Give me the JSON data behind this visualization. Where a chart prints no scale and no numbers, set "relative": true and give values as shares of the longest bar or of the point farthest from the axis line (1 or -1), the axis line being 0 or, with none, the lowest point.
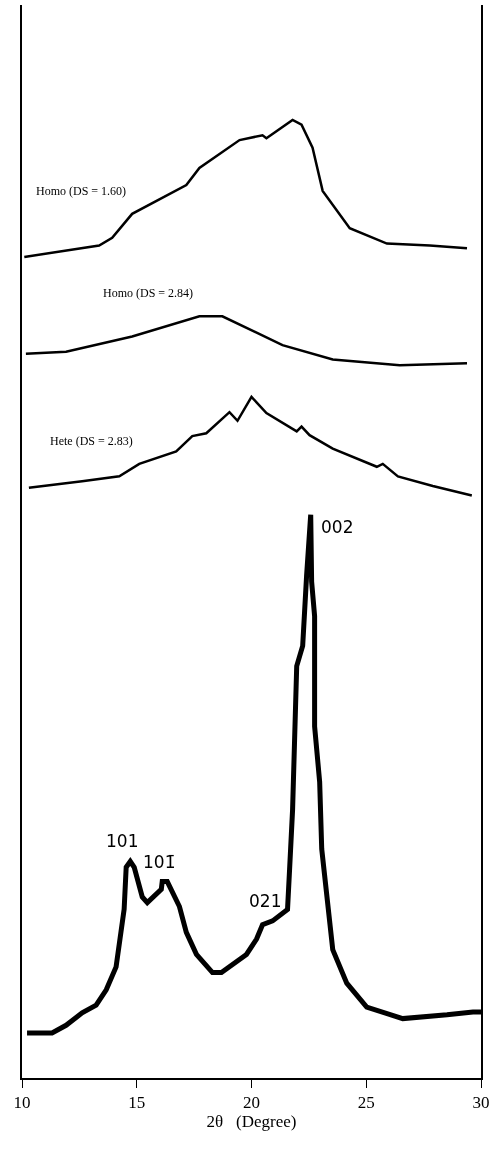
{
  "chart_data": {
    "type": "line",
    "relative": true,
    "xlabel": "2θ   (Degree)",
    "xlim": [
      10,
      30
    ],
    "xticks": [
      10,
      15,
      20,
      25,
      30
    ],
    "legend": false,
    "marker": "none",
    "line_style": "solid",
    "series": [
      {
        "name": "Homo (DS = 1.60)",
        "color": "#000000",
        "x": [
          10.1,
          13.36,
          13.93,
          14.8,
          17.16,
          17.73,
          19.48,
          20.48,
          20.65,
          21.79,
          22.18,
          22.66,
          23.1,
          24.28,
          25.9,
          27.77,
          29.39
        ],
        "values": [
          0.857,
          0.869,
          0.877,
          0.902,
          0.932,
          0.95,
          0.979,
          0.984,
          0.981,
          1.0,
          0.995,
          0.971,
          0.926,
          0.887,
          0.871,
          0.869,
          0.866
        ]
      },
      {
        "name": "Homo (DS = 2.84)",
        "color": "#000000",
        "x": [
          10.17,
          11.92,
          14.8,
          17.73,
          18.73,
          21.35,
          23.54,
          26.46,
          29.39
        ],
        "values": [
          0.756,
          0.758,
          0.774,
          0.795,
          0.795,
          0.765,
          0.75,
          0.744,
          0.746
        ]
      },
      {
        "name": "Hete (DS = 2.83)",
        "color": "#000000",
        "x": [
          10.3,
          12.62,
          14.24,
          15.11,
          16.72,
          17.42,
          18.03,
          19.04,
          19.39,
          20.0,
          20.65,
          21.97,
          22.18,
          22.53,
          23.54,
          25.46,
          25.72,
          26.38,
          27.9,
          29.6
        ],
        "values": [
          0.616,
          0.623,
          0.628,
          0.641,
          0.654,
          0.67,
          0.673,
          0.695,
          0.686,
          0.711,
          0.694,
          0.675,
          0.68,
          0.671,
          0.657,
          0.638,
          0.641,
          0.628,
          0.618,
          0.608
        ]
      },
      {
        "color": "#000000",
        "x": [
          10.22,
          11.31,
          11.92,
          12.62,
          13.23,
          13.67,
          14.1,
          14.45,
          14.54,
          14.72,
          14.89,
          15.24,
          15.46,
          16.07,
          16.11,
          16.33,
          16.86,
          17.16,
          17.6,
          18.3,
          18.69,
          19.78,
          20.22,
          20.48,
          20.92,
          21.57,
          21.66,
          21.79,
          21.97,
          22.23,
          22.4,
          22.58,
          22.62,
          22.75,
          22.75,
          22.97,
          23.06,
          23.54,
          24.15,
          25.02,
          26.59,
          28.52,
          29.65,
          30.0
        ],
        "values": [
          0.047,
          0.047,
          0.055,
          0.068,
          0.076,
          0.092,
          0.116,
          0.176,
          0.22,
          0.226,
          0.22,
          0.189,
          0.183,
          0.197,
          0.205,
          0.205,
          0.179,
          0.152,
          0.129,
          0.11,
          0.11,
          0.129,
          0.145,
          0.16,
          0.164,
          0.176,
          0.218,
          0.28,
          0.43,
          0.451,
          0.524,
          0.588,
          0.518,
          0.482,
          0.367,
          0.309,
          0.239,
          0.134,
          0.099,
          0.074,
          0.062,
          0.066,
          0.069,
          0.069
        ]
      }
    ],
    "annotations": [
      {
        "text": "101",
        "x": 14.72,
        "y": 0.226
      },
      {
        "text": "101̄",
        "x": 16.33,
        "y": 0.205
      },
      {
        "text": "021",
        "x": 20.92,
        "y": 0.164
      },
      {
        "text": "002",
        "x": 22.58,
        "y": 0.588
      }
    ]
  }
}
